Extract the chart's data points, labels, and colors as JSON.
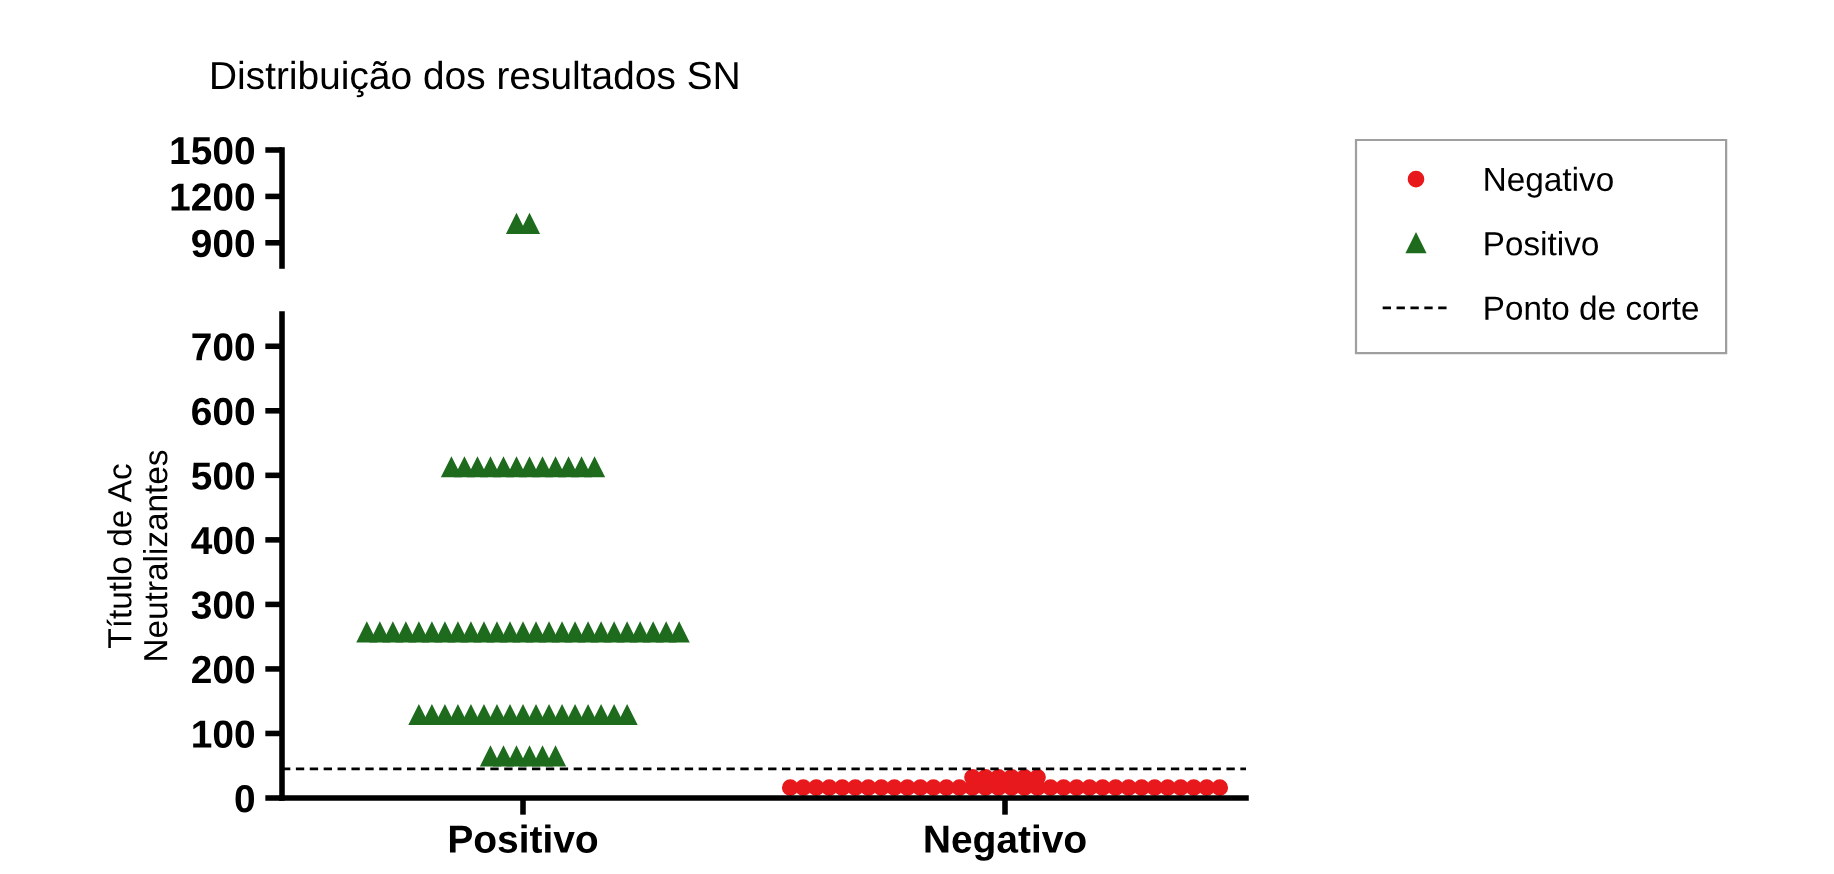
{
  "chart_data": [
    {
      "type": "scatter",
      "title": "Distribuição dos resultados SN",
      "categories": [
        "Positivo",
        "Negativo"
      ],
      "series": [
        {
          "color": "#1e6b1e",
          "marker": "triangle",
          "x": [
            "Positivo",
            "Positivo"
          ],
          "values": [
            1020,
            1020
          ]
        }
      ],
      "ylim": [
        750,
        1500
      ],
      "yticks": [
        900,
        1200,
        1500
      ],
      "tick_labels": "y",
      "grid": false
    },
    {
      "type": "scatter",
      "ylabel": "Títutlo de Ac\nNeutralizantes",
      "categories": [
        "Positivo",
        "Negativo"
      ],
      "series": [
        {
          "name": "Negativo",
          "color": "#e8191c",
          "marker": "circle",
          "x": [
            "Negativo",
            "Negativo",
            "Negativo",
            "Negativo",
            "Negativo",
            "Negativo",
            "Negativo",
            "Negativo",
            "Negativo",
            "Negativo",
            "Negativo",
            "Negativo",
            "Negativo",
            "Negativo",
            "Negativo",
            "Negativo",
            "Negativo",
            "Negativo",
            "Negativo",
            "Negativo",
            "Negativo",
            "Negativo",
            "Negativo",
            "Negativo",
            "Negativo",
            "Negativo",
            "Negativo",
            "Negativo",
            "Negativo",
            "Negativo",
            "Negativo",
            "Negativo",
            "Negativo",
            "Negativo",
            "Negativo",
            "Negativo",
            "Negativo",
            "Negativo",
            "Negativo",
            "Negativo"
          ],
          "values": [
            16,
            32,
            32,
            32,
            16,
            16,
            16,
            16,
            16,
            16,
            32,
            16,
            32,
            16,
            16,
            16,
            16,
            16,
            16,
            16,
            32,
            16,
            16,
            16,
            16,
            16,
            16,
            16,
            16,
            16,
            16,
            16,
            16,
            16,
            16,
            16,
            16,
            16,
            16,
            16
          ]
        },
        {
          "name": "Positivo",
          "color": "#1e6b1e",
          "marker": "triangle",
          "x": [
            "Positivo",
            "Positivo",
            "Positivo",
            "Positivo",
            "Positivo",
            "Positivo",
            "Positivo",
            "Positivo",
            "Positivo",
            "Positivo",
            "Positivo",
            "Positivo",
            "Positivo",
            "Positivo",
            "Positivo",
            "Positivo",
            "Positivo",
            "Positivo",
            "Positivo",
            "Positivo",
            "Positivo",
            "Positivo",
            "Positivo",
            "Positivo",
            "Positivo",
            "Positivo",
            "Positivo",
            "Positivo",
            "Positivo",
            "Positivo",
            "Positivo",
            "Positivo",
            "Positivo",
            "Positivo",
            "Positivo",
            "Positivo",
            "Positivo",
            "Positivo",
            "Positivo",
            "Positivo",
            "Positivo",
            "Positivo",
            "Positivo",
            "Positivo",
            "Positivo",
            "Positivo",
            "Positivo",
            "Positivo",
            "Positivo",
            "Positivo",
            "Positivo",
            "Positivo",
            "Positivo",
            "Positivo",
            "Positivo",
            "Positivo",
            "Positivo",
            "Positivo",
            "Positivo",
            "Positivo"
          ],
          "values": [
            512,
            512,
            512,
            512,
            512,
            512,
            512,
            512,
            512,
            512,
            512,
            512,
            256,
            256,
            256,
            256,
            256,
            256,
            256,
            256,
            256,
            256,
            256,
            256,
            256,
            256,
            256,
            256,
            256,
            256,
            256,
            256,
            256,
            256,
            256,
            256,
            256,
            128,
            128,
            128,
            128,
            128,
            128,
            128,
            128,
            128,
            128,
            128,
            128,
            128,
            128,
            128,
            128,
            128,
            64,
            64,
            64,
            64,
            64,
            64
          ]
        }
      ],
      "ylim": [
        0,
        750
      ],
      "yticks": [
        0,
        100,
        200,
        300,
        400,
        500,
        600,
        700
      ],
      "ref_lines": [
        {
          "axis": "y",
          "value": 45,
          "label": "Ponto de corte",
          "line_style": "dashed",
          "color": "#000000"
        }
      ],
      "legend": "right",
      "grid": false
    }
  ]
}
